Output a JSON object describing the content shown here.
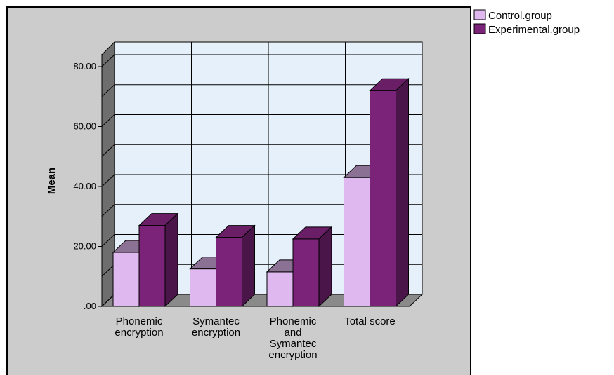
{
  "chart_data": {
    "type": "bar",
    "ylabel": "Mean",
    "xlabel": "",
    "ylim": [
      0,
      80
    ],
    "yticks": [
      ".00",
      "20.00",
      "40.00",
      "60.00",
      "80.00"
    ],
    "categories": [
      [
        "Phonemic",
        "encryption"
      ],
      [
        "Symantec",
        "encryption"
      ],
      [
        "Phonemic",
        "and",
        "Symantec",
        "encryption"
      ],
      [
        "Total score"
      ]
    ],
    "series": [
      {
        "name": "Control.group",
        "color": "#e0b8f0",
        "values": [
          18,
          12.5,
          11.5,
          43
        ]
      },
      {
        "name": "Experimental.group",
        "color": "#7b2378",
        "values": [
          27,
          23,
          22.5,
          72
        ]
      }
    ],
    "grid": true,
    "legend": "top-right",
    "plot_background": "#e6f0fa",
    "frame_background": "#cccccc"
  }
}
